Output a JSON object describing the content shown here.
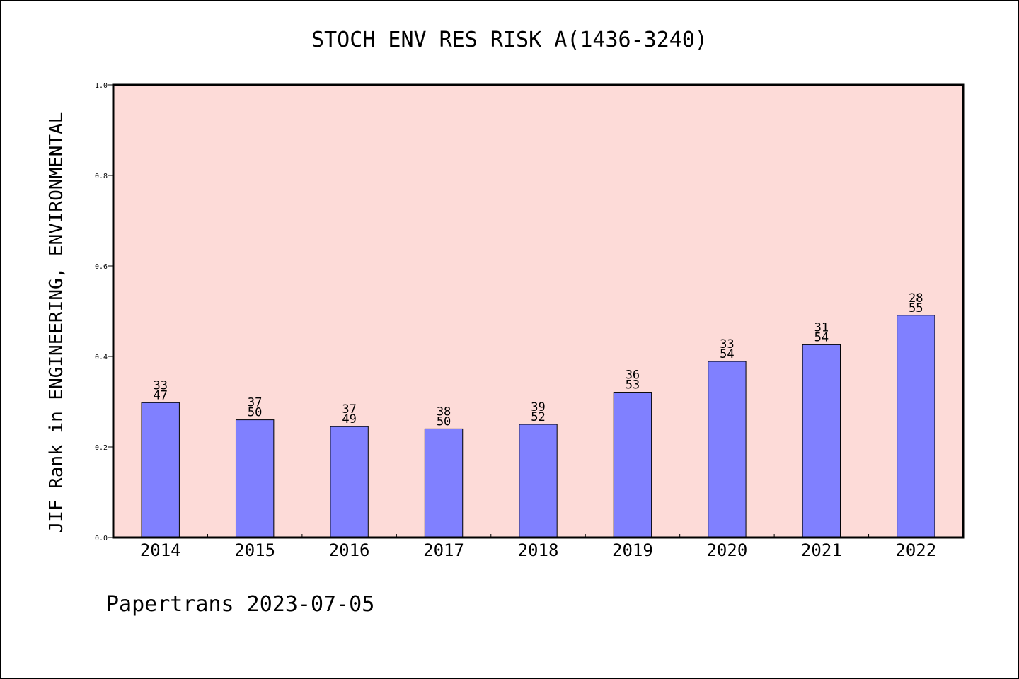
{
  "chart_data": {
    "type": "bar",
    "title": "STOCH ENV RES RISK A(1436-3240)",
    "ylabel": "JIF Rank in ENGINEERING, ENVIRONMENTAL",
    "xlabel": "",
    "categories": [
      "2014",
      "2015",
      "2016",
      "2017",
      "2018",
      "2019",
      "2020",
      "2021",
      "2022"
    ],
    "values": [
      0.298,
      0.26,
      0.245,
      0.24,
      0.25,
      0.321,
      0.389,
      0.426,
      0.491
    ],
    "rank_labels": [
      {
        "rank": "33",
        "total": "47"
      },
      {
        "rank": "37",
        "total": "50"
      },
      {
        "rank": "37",
        "total": "49"
      },
      {
        "rank": "38",
        "total": "50"
      },
      {
        "rank": "39",
        "total": "52"
      },
      {
        "rank": "36",
        "total": "53"
      },
      {
        "rank": "33",
        "total": "54"
      },
      {
        "rank": "31",
        "total": "54"
      },
      {
        "rank": "28",
        "total": "55"
      }
    ],
    "ylim": [
      0.0,
      1.0
    ],
    "yticks": [
      "0.0",
      "0.2",
      "0.4",
      "0.6",
      "0.8",
      "1.0"
    ],
    "grid": false,
    "colors": {
      "plot_background": "#fddbd8",
      "bar_fill": "#8080ff",
      "bar_stroke": "#000000"
    }
  },
  "footer": "Papertrans 2023-07-05"
}
